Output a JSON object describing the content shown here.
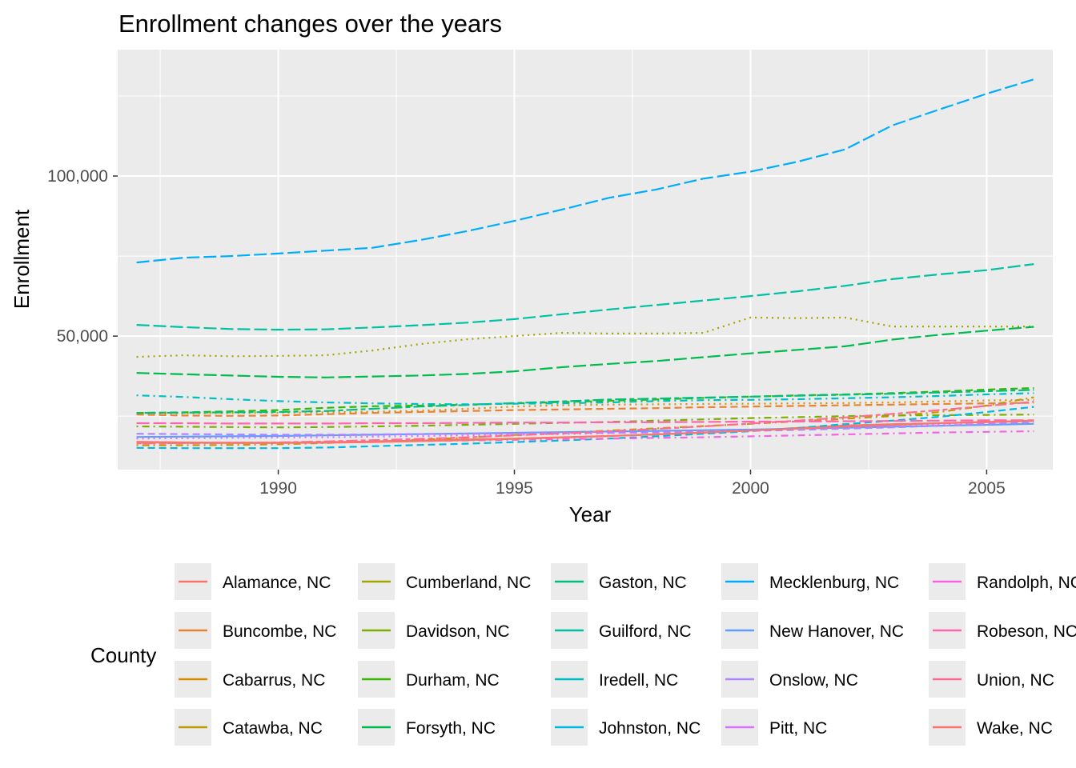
{
  "chart_data": {
    "type": "line",
    "title": "Enrollment changes over the years",
    "xlabel": "Year",
    "ylabel": "Enrollment",
    "xlim": [
      1986.6,
      2006.4
    ],
    "ylim": [
      8300,
      139500
    ],
    "x_ticks": [
      1990,
      1995,
      2000,
      2005
    ],
    "x_tick_labels": [
      "1990",
      "1995",
      "2000",
      "2005"
    ],
    "y_ticks": [
      50000,
      100000
    ],
    "y_tick_labels": [
      "50,000",
      "100,000"
    ],
    "grid": true,
    "panel_background": "#EBEBEB",
    "legend_title": "County",
    "legend_position": "bottom",
    "x": [
      1987,
      1988,
      1989,
      1990,
      1991,
      1992,
      1993,
      1994,
      1995,
      1996,
      1997,
      1998,
      1999,
      2000,
      2001,
      2002,
      2003,
      2004,
      2005,
      2006
    ],
    "series": [
      {
        "name": "Alamance, NC",
        "color": "#F8766D",
        "dash": "solid",
        "values": [
          17000,
          16800,
          16700,
          16700,
          16900,
          17100,
          17400,
          17700,
          18000,
          18400,
          18800,
          19300,
          19800,
          20500,
          21300,
          22100,
          22500,
          22800,
          23100,
          23500
        ]
      },
      {
        "name": "Buncombe, NC",
        "color": "#EA8331",
        "dash": "dashed",
        "values": [
          25500,
          25200,
          25100,
          25200,
          25600,
          26000,
          26300,
          26600,
          26900,
          27100,
          27300,
          27500,
          27800,
          28000,
          28200,
          28400,
          28600,
          28800,
          29000,
          29200
        ]
      },
      {
        "name": "Cabarrus, NC",
        "color": "#D89000",
        "dash": "dotted",
        "values": [
          25800,
          25900,
          26000,
          26100,
          26200,
          26400,
          26700,
          27300,
          28000,
          28400,
          28600,
          28700,
          28800,
          28900,
          29000,
          29100,
          29300,
          29600,
          29900,
          30100
        ]
      },
      {
        "name": "Catawba, NC",
        "color": "#C09B00",
        "dash": "dotdash",
        "values": [
          15900,
          15900,
          16000,
          16200,
          16600,
          17100,
          17600,
          18300,
          19100,
          19800,
          20500,
          21200,
          21900,
          22600,
          23400,
          24200,
          25000,
          26300,
          28300,
          30900
        ]
      },
      {
        "name": "Cumberland, NC",
        "color": "#A3A500",
        "dash": "dotted",
        "values": [
          43500,
          44000,
          43700,
          43800,
          44000,
          45500,
          47500,
          49000,
          50000,
          51000,
          50800,
          50800,
          51000,
          55800,
          55600,
          55800,
          53000,
          53000,
          53000,
          53000
        ]
      },
      {
        "name": "Davidson, NC",
        "color": "#7CAE00",
        "dash": "dotdash",
        "values": [
          21800,
          21700,
          21600,
          21500,
          21600,
          21800,
          22000,
          22300,
          22600,
          22900,
          23200,
          23600,
          24000,
          24400,
          24700,
          25000,
          25200,
          25300,
          25400,
          25500
        ]
      },
      {
        "name": "Durham, NC",
        "color": "#39B600",
        "dash": "dashed",
        "values": [
          26000,
          26200,
          26500,
          26900,
          27600,
          28100,
          28300,
          28600,
          29000,
          29400,
          29800,
          30200,
          30700,
          31100,
          31500,
          31800,
          32200,
          32700,
          33300,
          33800
        ]
      },
      {
        "name": "Forsyth, NC",
        "color": "#00BB4E",
        "dash": "longdash",
        "values": [
          38500,
          38100,
          37700,
          37300,
          37100,
          37400,
          37700,
          38200,
          39000,
          40300,
          41300,
          42200,
          43400,
          44600,
          45700,
          46800,
          48900,
          50400,
          51700,
          52900
        ]
      },
      {
        "name": "Gaston, NC",
        "color": "#00BF7D",
        "dash": "twodash",
        "values": [
          26000,
          26100,
          26200,
          26300,
          26600,
          27300,
          28000,
          28500,
          29100,
          29600,
          30200,
          30500,
          30800,
          31100,
          31400,
          31700,
          32000,
          32400,
          32800,
          33200
        ]
      },
      {
        "name": "Guilford, NC",
        "color": "#00C1A3",
        "dash": "longdash",
        "values": [
          53500,
          52800,
          52200,
          52000,
          52100,
          52700,
          53400,
          54200,
          55300,
          56800,
          58300,
          59700,
          61100,
          62500,
          64000,
          65700,
          67800,
          69300,
          70600,
          72500
        ]
      },
      {
        "name": "Iredell, NC",
        "color": "#00BFC4",
        "dash": "dotdash",
        "values": [
          31500,
          31000,
          30300,
          29700,
          29300,
          29000,
          28800,
          28700,
          28900,
          29000,
          29300,
          29700,
          30000,
          30100,
          30300,
          30600,
          30900,
          31300,
          31800,
          32200
        ]
      },
      {
        "name": "Johnston, NC",
        "color": "#00B9E3",
        "dash": "dashed",
        "values": [
          15100,
          15000,
          15000,
          15000,
          15200,
          15600,
          16000,
          16400,
          16900,
          17400,
          18000,
          18700,
          19500,
          20300,
          21300,
          22500,
          23600,
          24800,
          26300,
          27900
        ]
      },
      {
        "name": "Mecklenburg, NC",
        "color": "#00ADFA",
        "dash": "longdash",
        "values": [
          73000,
          74500,
          75000,
          75800,
          76700,
          77600,
          80000,
          82800,
          86000,
          89500,
          93200,
          95800,
          99200,
          101400,
          104500,
          108300,
          115800,
          120800,
          125700,
          130200
        ]
      },
      {
        "name": "New Hanover, NC",
        "color": "#619CFF",
        "dash": "solid",
        "values": [
          18500,
          18600,
          18700,
          18800,
          19000,
          19200,
          19400,
          19600,
          19800,
          20000,
          20200,
          20400,
          20600,
          20800,
          21100,
          21400,
          21700,
          22000,
          22300,
          22600
        ]
      },
      {
        "name": "Onslow, NC",
        "color": "#AE87FF",
        "dash": "dashed",
        "values": [
          19500,
          19400,
          19300,
          19200,
          19200,
          19300,
          19400,
          19500,
          19600,
          19700,
          19800,
          19900,
          20100,
          20400,
          20700,
          21100,
          21500,
          22000,
          22600,
          23200
        ]
      },
      {
        "name": "Pitt, NC",
        "color": "#DB72FB",
        "dash": "dotted",
        "values": [
          18000,
          18100,
          18200,
          18300,
          18400,
          18600,
          18800,
          19000,
          19200,
          19400,
          19700,
          20000,
          20300,
          20700,
          21100,
          21500,
          22000,
          22500,
          23000,
          23600
        ]
      },
      {
        "name": "Randolph, NC",
        "color": "#F564E3",
        "dash": "dotdash",
        "values": [
          16500,
          16500,
          16600,
          16700,
          16800,
          17000,
          17200,
          17400,
          17600,
          17800,
          18000,
          18200,
          18400,
          18700,
          19000,
          19300,
          19600,
          19900,
          20100,
          20300
        ]
      },
      {
        "name": "Robeson, NC",
        "color": "#FF64B0",
        "dash": "longdash",
        "values": [
          22800,
          22800,
          22700,
          22700,
          22700,
          22800,
          22800,
          22900,
          23000,
          23000,
          23100,
          23100,
          23200,
          23300,
          23300,
          23400,
          23500,
          23600,
          23700,
          23700
        ]
      },
      {
        "name": "Union, NC",
        "color": "#FF6C91",
        "dash": "twodash",
        "values": [
          16500,
          16600,
          16700,
          16800,
          17100,
          17500,
          17900,
          18400,
          19000,
          19600,
          20300,
          21000,
          21800,
          22700,
          23600,
          24600,
          25700,
          26900,
          28200,
          29500
        ]
      },
      {
        "name": "Wake, NC",
        "color": "#F8766D",
        "dash": "solid",
        "values": [
          16800,
          16700,
          16600,
          16600,
          16700,
          16900,
          17200,
          17500,
          17900,
          18300,
          18800,
          19300,
          19900,
          20500,
          21100,
          21800,
          22300,
          22800,
          23200,
          23600
        ]
      }
    ]
  }
}
